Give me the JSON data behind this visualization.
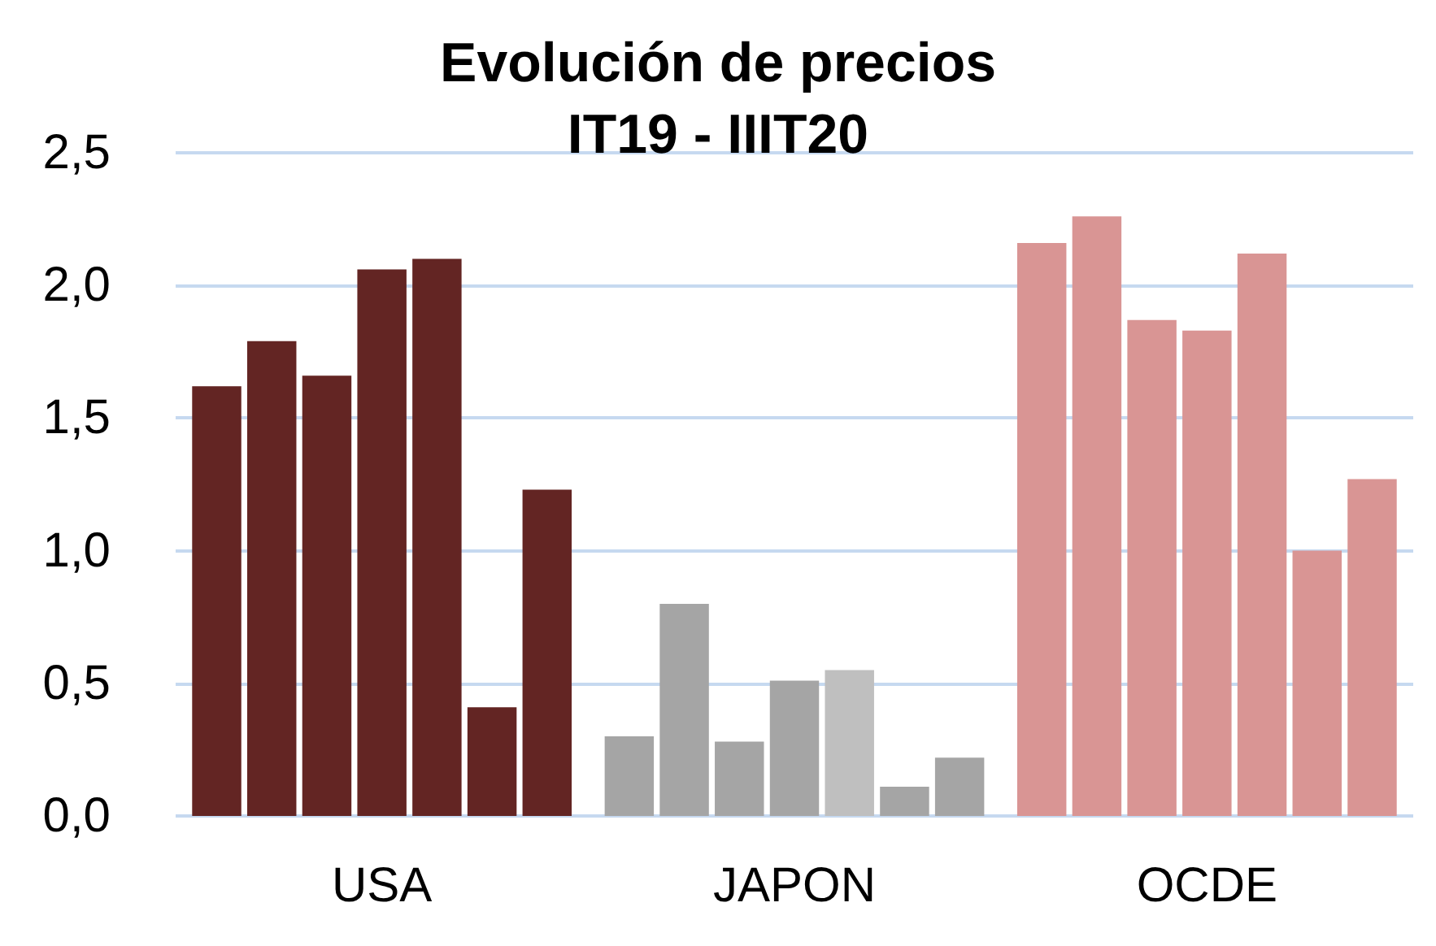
{
  "chart_data": {
    "type": "bar",
    "title": "Evolución de precios\nIT19 - IIIT20",
    "categories": [
      "USA",
      "JAPON",
      "OCDE"
    ],
    "series": [
      {
        "colors": [
          "#632523",
          "#a5a5a5",
          "#d99594"
        ],
        "values": [
          1.62,
          0.3,
          2.16
        ]
      },
      {
        "colors": [
          "#632523",
          "#a5a5a5",
          "#d99594"
        ],
        "values": [
          1.79,
          0.8,
          2.26
        ]
      },
      {
        "colors": [
          "#632523",
          "#a5a5a5",
          "#d99594"
        ],
        "values": [
          1.66,
          0.28,
          1.87
        ]
      },
      {
        "colors": [
          "#632523",
          "#a5a5a5",
          "#d99594"
        ],
        "values": [
          2.06,
          0.51,
          1.83
        ]
      },
      {
        "colors": [
          "#632523",
          "#bfbfbf",
          "#d99594"
        ],
        "values": [
          2.1,
          0.55,
          2.12
        ]
      },
      {
        "colors": [
          "#632523",
          "#a5a5a5",
          "#d99594"
        ],
        "values": [
          0.41,
          0.11,
          1.0
        ]
      },
      {
        "colors": [
          "#632523",
          "#a5a5a5",
          "#d99594"
        ],
        "values": [
          1.23,
          0.22,
          1.27
        ]
      }
    ],
    "ylim": [
      0,
      2.5
    ],
    "yticks": [
      {
        "value": 0,
        "label": "0,0"
      },
      {
        "value": 0.5,
        "label": "0,5"
      },
      {
        "value": 1,
        "label": "1,0"
      },
      {
        "value": 1.5,
        "label": "1,5"
      },
      {
        "value": 2,
        "label": "2,0"
      },
      {
        "value": 2.5,
        "label": "2,5"
      }
    ],
    "grid": "y"
  }
}
